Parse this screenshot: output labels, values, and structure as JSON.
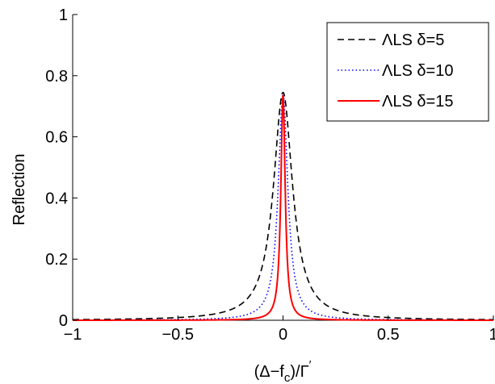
{
  "chart_data": {
    "type": "line",
    "title": "",
    "xlabel": "(Δ−f_c)/Γ′",
    "xlabel_parts": {
      "main": "(Δ−f",
      "sub": "c",
      "rest": ")/Γ",
      "sup": "′"
    },
    "ylabel": "Reflection",
    "xlim": [
      -1,
      1
    ],
    "ylim": [
      0,
      1
    ],
    "xticks": [
      -1,
      -0.5,
      0,
      0.5,
      1
    ],
    "xtick_labels": [
      "−1",
      "−0.5",
      "0",
      "0.5",
      "1"
    ],
    "yticks": [
      0,
      0.2,
      0.4,
      0.6,
      0.8,
      1
    ],
    "ytick_labels": [
      "0",
      "0.2",
      "0.4",
      "0.6",
      "0.8",
      "1"
    ],
    "grid": false,
    "legend_position": "top-right",
    "series": [
      {
        "name": "ΛLS δ=5",
        "color": "#000000",
        "style": "dashed",
        "peak": 0.745,
        "center": 0,
        "half_width": 0.055
      },
      {
        "name": "ΛLS δ=10",
        "color": "#0000ff",
        "style": "dotted",
        "peak": 0.74,
        "center": 0,
        "half_width": 0.0275
      },
      {
        "name": "ΛLS δ=15",
        "color": "#ff0000",
        "style": "solid",
        "peak": 0.735,
        "center": 0,
        "half_width": 0.0125
      }
    ]
  }
}
